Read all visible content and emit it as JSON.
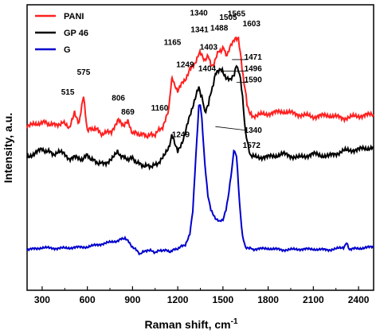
{
  "chart_data": {
    "type": "line",
    "xlabel": "Raman shift, cm",
    "xlabel_sup": "-1",
    "ylabel": "Intensity, a.u.",
    "xlim": [
      200,
      2500
    ],
    "x_ticks": [
      300,
      600,
      900,
      1200,
      1500,
      1800,
      2100,
      2400
    ],
    "y_ticks_labeled": false,
    "grid": false,
    "legend_position": "top-left",
    "series": [
      {
        "name": "PANI",
        "color": "#ff2020",
        "x": [
          200,
          300,
          380,
          440,
          480,
          515,
          545,
          575,
          600,
          650,
          700,
          760,
          806,
          840,
          869,
          900,
          950,
          1000,
          1050,
          1100,
          1140,
          1160,
          1165,
          1175,
          1200,
          1249,
          1280,
          1310,
          1340,
          1360,
          1380,
          1403,
          1420,
          1440,
          1470,
          1488,
          1505,
          1520,
          1540,
          1565,
          1580,
          1603,
          1620,
          1640,
          1660,
          1680,
          1700,
          1800,
          1900,
          2000,
          2100,
          2200,
          2300,
          2400,
          2500
        ],
        "y": [
          170,
          176,
          172,
          175,
          166,
          190,
          174,
          210,
          165,
          168,
          160,
          164,
          180,
          170,
          176,
          162,
          160,
          158,
          160,
          170,
          192,
          232,
          234,
          225,
          218,
          232,
          244,
          252,
          266,
          265,
          255,
          262,
          250,
          252,
          268,
          270,
          276,
          262,
          271,
          280,
          284,
          284,
          258,
          228,
          200,
          186,
          184,
          187,
          190,
          186,
          183,
          185,
          181,
          184,
          186
        ]
      },
      {
        "name": "GP 46",
        "color": "#000000",
        "x": [
          200,
          300,
          380,
          440,
          480,
          515,
          550,
          600,
          650,
          700,
          760,
          800,
          850,
          900,
          950,
          1000,
          1050,
          1100,
          1140,
          1160,
          1180,
          1200,
          1249,
          1280,
          1310,
          1340,
          1360,
          1380,
          1404,
          1430,
          1450,
          1471,
          1496,
          1520,
          1550,
          1575,
          1590,
          1610,
          1630,
          1650,
          1680,
          1700,
          1800,
          1900,
          2000,
          2100,
          2200,
          2300,
          2400,
          2500
        ],
        "y": [
          130,
          140,
          134,
          137,
          128,
          130,
          126,
          132,
          124,
          121,
          126,
          136,
          128,
          128,
          120,
          118,
          119,
          128,
          142,
          158,
          150,
          136,
          160,
          186,
          202,
          222,
          208,
          190,
          200,
          222,
          238,
          243,
          244,
          235,
          230,
          240,
          251,
          240,
          210,
          160,
          134,
          130,
          130,
          134,
          129,
          134,
          131,
          138,
          140,
          143
        ]
      },
      {
        "name": "G",
        "color": "#0000cc",
        "x": [
          200,
          300,
          400,
          500,
          600,
          700,
          800,
          850,
          900,
          950,
          1000,
          1050,
          1100,
          1150,
          1200,
          1250,
          1280,
          1300,
          1320,
          1340,
          1350,
          1360,
          1380,
          1400,
          1420,
          1450,
          1480,
          1500,
          1520,
          1540,
          1560,
          1572,
          1590,
          1610,
          1630,
          1650,
          1680,
          1700,
          1800,
          1900,
          2000,
          2100,
          2200,
          2300,
          2320,
          2340,
          2400,
          2500
        ],
        "y": [
          8,
          11,
          10,
          11,
          12,
          16,
          20,
          24,
          12,
          3,
          8,
          5,
          8,
          6,
          10,
          15,
          28,
          60,
          130,
          197,
          200,
          180,
          120,
          80,
          60,
          50,
          45,
          48,
          60,
          85,
          115,
          140,
          132,
          70,
          25,
          12,
          10,
          9,
          10,
          8,
          9,
          9,
          8,
          11,
          17,
          9,
          10,
          12
        ]
      }
    ],
    "annotations": [
      {
        "text": "515",
        "x": 470,
        "y": 212
      },
      {
        "text": "575",
        "x": 575,
        "y": 238
      },
      {
        "text": "806",
        "x": 806,
        "y": 204
      },
      {
        "text": "869",
        "x": 869,
        "y": 186
      },
      {
        "text": "1165",
        "x": 1165,
        "y": 277
      },
      {
        "text": "1249",
        "x": 1249,
        "y": 248
      },
      {
        "text": "1340",
        "x": 1340,
        "y": 316
      },
      {
        "text": "1341",
        "x": 1345,
        "y": 294
      },
      {
        "text": "1403",
        "x": 1405,
        "y": 271
      },
      {
        "text": "1488",
        "x": 1475,
        "y": 296
      },
      {
        "text": "1505",
        "x": 1535,
        "y": 310
      },
      {
        "text": "1565",
        "x": 1590,
        "y": 315
      },
      {
        "text": "1603",
        "x": 1690,
        "y": 302
      },
      {
        "text": "1471",
        "x": 1700,
        "y": 258
      },
      {
        "text": "1496",
        "x": 1700,
        "y": 243
      },
      {
        "text": "1590",
        "x": 1700,
        "y": 228
      },
      {
        "text": "1404",
        "x": 1395,
        "y": 243
      },
      {
        "text": "1160",
        "x": 1080,
        "y": 191
      },
      {
        "text": "1249",
        "x": 1220,
        "y": 156
      },
      {
        "text": "1340",
        "x": 1700,
        "y": 162
      },
      {
        "text": "1572",
        "x": 1690,
        "y": 142
      }
    ],
    "ylim": [
      -45,
      330
    ]
  }
}
